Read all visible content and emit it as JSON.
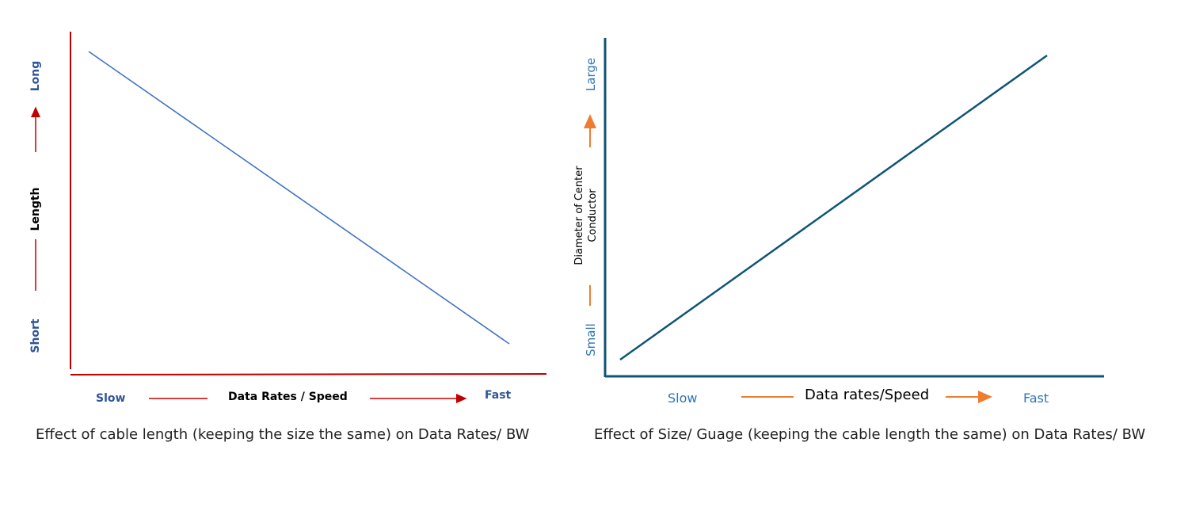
{
  "charts": [
    {
      "id": "left",
      "caption": "Effect of cable length (keeping the size the same) on Data Rates/ BW",
      "x_axis": {
        "label": "Data Rates / Speed",
        "start": "Slow",
        "end": "Fast"
      },
      "y_axis": {
        "label": "Length",
        "start": "Short",
        "end": "Long"
      },
      "trend": "decreasing",
      "colors": {
        "axis": "#c00000",
        "line": "#4472c4",
        "labels": "#2f5597",
        "arrow": "#c00000"
      }
    },
    {
      "id": "right",
      "caption": "Effect of Size/ Guage (keeping the cable length the same) on Data Rates/ BW",
      "x_axis": {
        "label": "Data rates/Speed",
        "start": "Slow",
        "end": "Fast"
      },
      "y_axis": {
        "label_line1": "Diameter of Center",
        "label_line2": "Conductor",
        "start": "Small",
        "end": "Large"
      },
      "trend": "increasing",
      "colors": {
        "axis": "#0f5574",
        "line": "#0f5574",
        "labels": "#2e75b6",
        "arrow": "#ed7d31"
      }
    }
  ]
}
